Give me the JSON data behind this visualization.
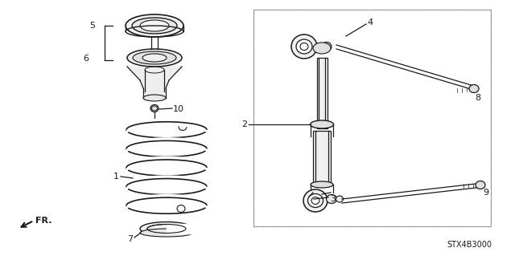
{
  "bg_color": "#ffffff",
  "line_color": "#1a1a1a",
  "part_code": "STX4B3000",
  "figsize": [
    6.4,
    3.19
  ],
  "dpi": 100
}
